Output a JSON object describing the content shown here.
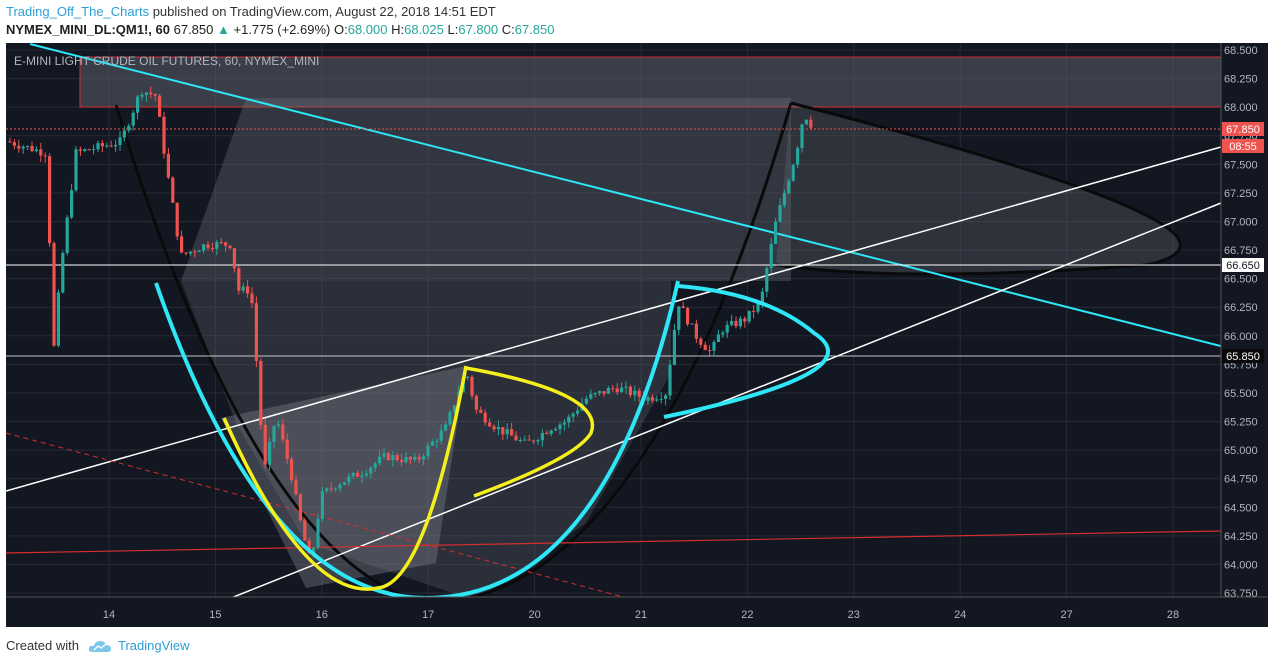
{
  "header": {
    "author": "Trading_Off_The_Charts",
    "published_text": "published on TradingView.com, August 22, 2018 14:51 EDT",
    "symbol": "NYMEX_MINI_DL:QM1!, 60",
    "last": "67.850",
    "change": "+1.775 (+2.69%)",
    "o_label": "O:",
    "o_val": "68.000",
    "h_label": "H:",
    "h_val": "68.025",
    "l_label": "L:",
    "l_val": "67.800",
    "c_label": "C:",
    "c_val": "67.850"
  },
  "chart_data": {
    "type": "candlestick",
    "instrument_label": "E-MINI LIGHT CRUDE OIL FUTURES, 60, NYMEX_MINI",
    "y_ticks": [
      "68.500",
      "68.250",
      "68.000",
      "67.750",
      "67.500",
      "67.250",
      "67.000",
      "66.750",
      "66.500",
      "66.250",
      "66.000",
      "65.750",
      "65.500",
      "65.250",
      "65.000",
      "64.750",
      "64.500",
      "64.250",
      "64.000",
      "63.750"
    ],
    "ylim": [
      63.7,
      68.6
    ],
    "x_ticks": [
      "14",
      "15",
      "16",
      "17",
      "20",
      "21",
      "22",
      "23",
      "24",
      "27",
      "28"
    ],
    "price_labels": {
      "last": "67.850",
      "countdown": "08:55",
      "level_1": "66.650",
      "level_2": "65.850"
    },
    "grid": true,
    "colors": {
      "up": "#26a69a",
      "down": "#ef5350",
      "cyan": "#2ee6f5",
      "yellow": "#f5ef1b",
      "white_line": "#ffffff",
      "red_line": "#d32f2f",
      "background": "#131722"
    }
  },
  "footer": {
    "created_with": "Created with",
    "brand": "TradingView"
  }
}
